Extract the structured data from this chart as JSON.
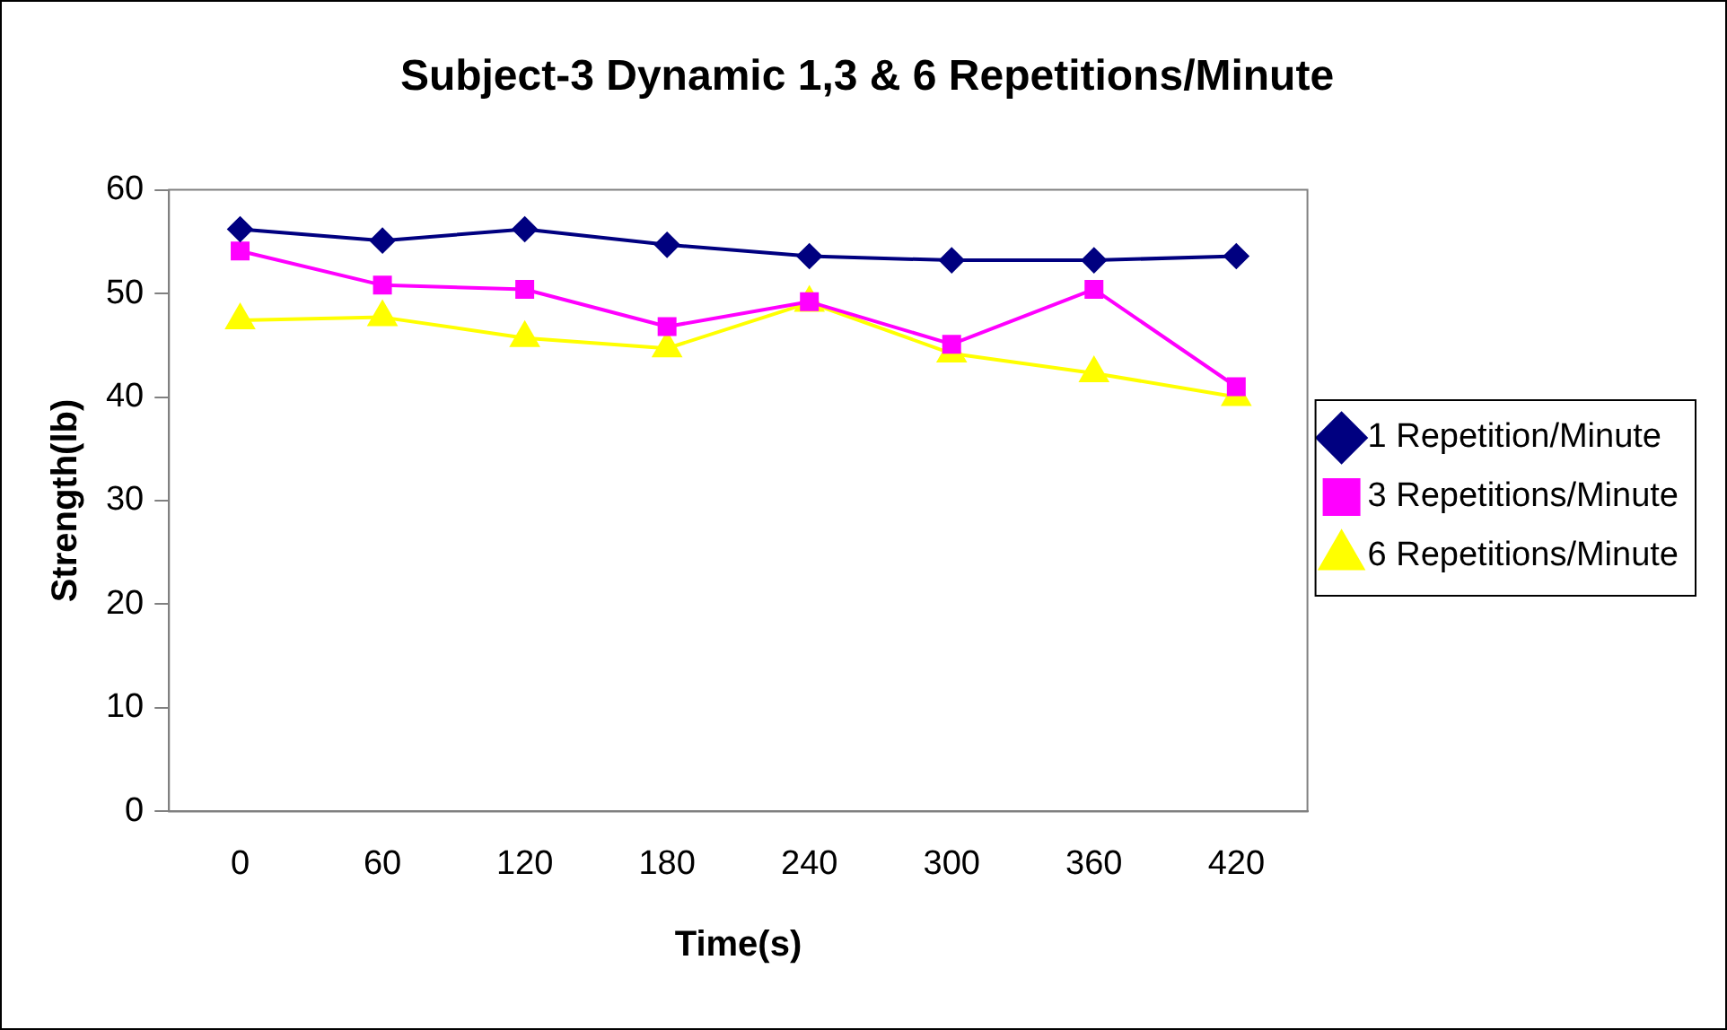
{
  "chart_data": {
    "type": "line",
    "title": "Subject-3 Dynamic 1,3 & 6 Repetitions/Minute",
    "xlabel": "Time(s)",
    "ylabel": "Strength(lb)",
    "categories": [
      "0",
      "60",
      "120",
      "180",
      "240",
      "300",
      "360",
      "420"
    ],
    "series": [
      {
        "name": "1 Repetition/Minute",
        "color": "#000080",
        "marker": "diamond",
        "values": [
          56.2,
          55.1,
          56.2,
          54.7,
          53.6,
          53.2,
          53.2,
          53.6
        ]
      },
      {
        "name": "3 Repetitions/Minute",
        "color": "#ff00ff",
        "marker": "square",
        "values": [
          54.1,
          50.8,
          50.4,
          46.8,
          49.2,
          45.1,
          50.4,
          41.0
        ]
      },
      {
        "name": "6 Repetitions/Minute",
        "color": "#ffff00",
        "marker": "triangle",
        "values": [
          47.4,
          47.7,
          45.7,
          44.7,
          49.1,
          44.2,
          42.3,
          40.0
        ]
      }
    ],
    "ylim": [
      0,
      60
    ],
    "yticks": [
      0,
      10,
      20,
      30,
      40,
      50,
      60
    ],
    "grid": false,
    "legend": "right",
    "line_style": "solid"
  }
}
